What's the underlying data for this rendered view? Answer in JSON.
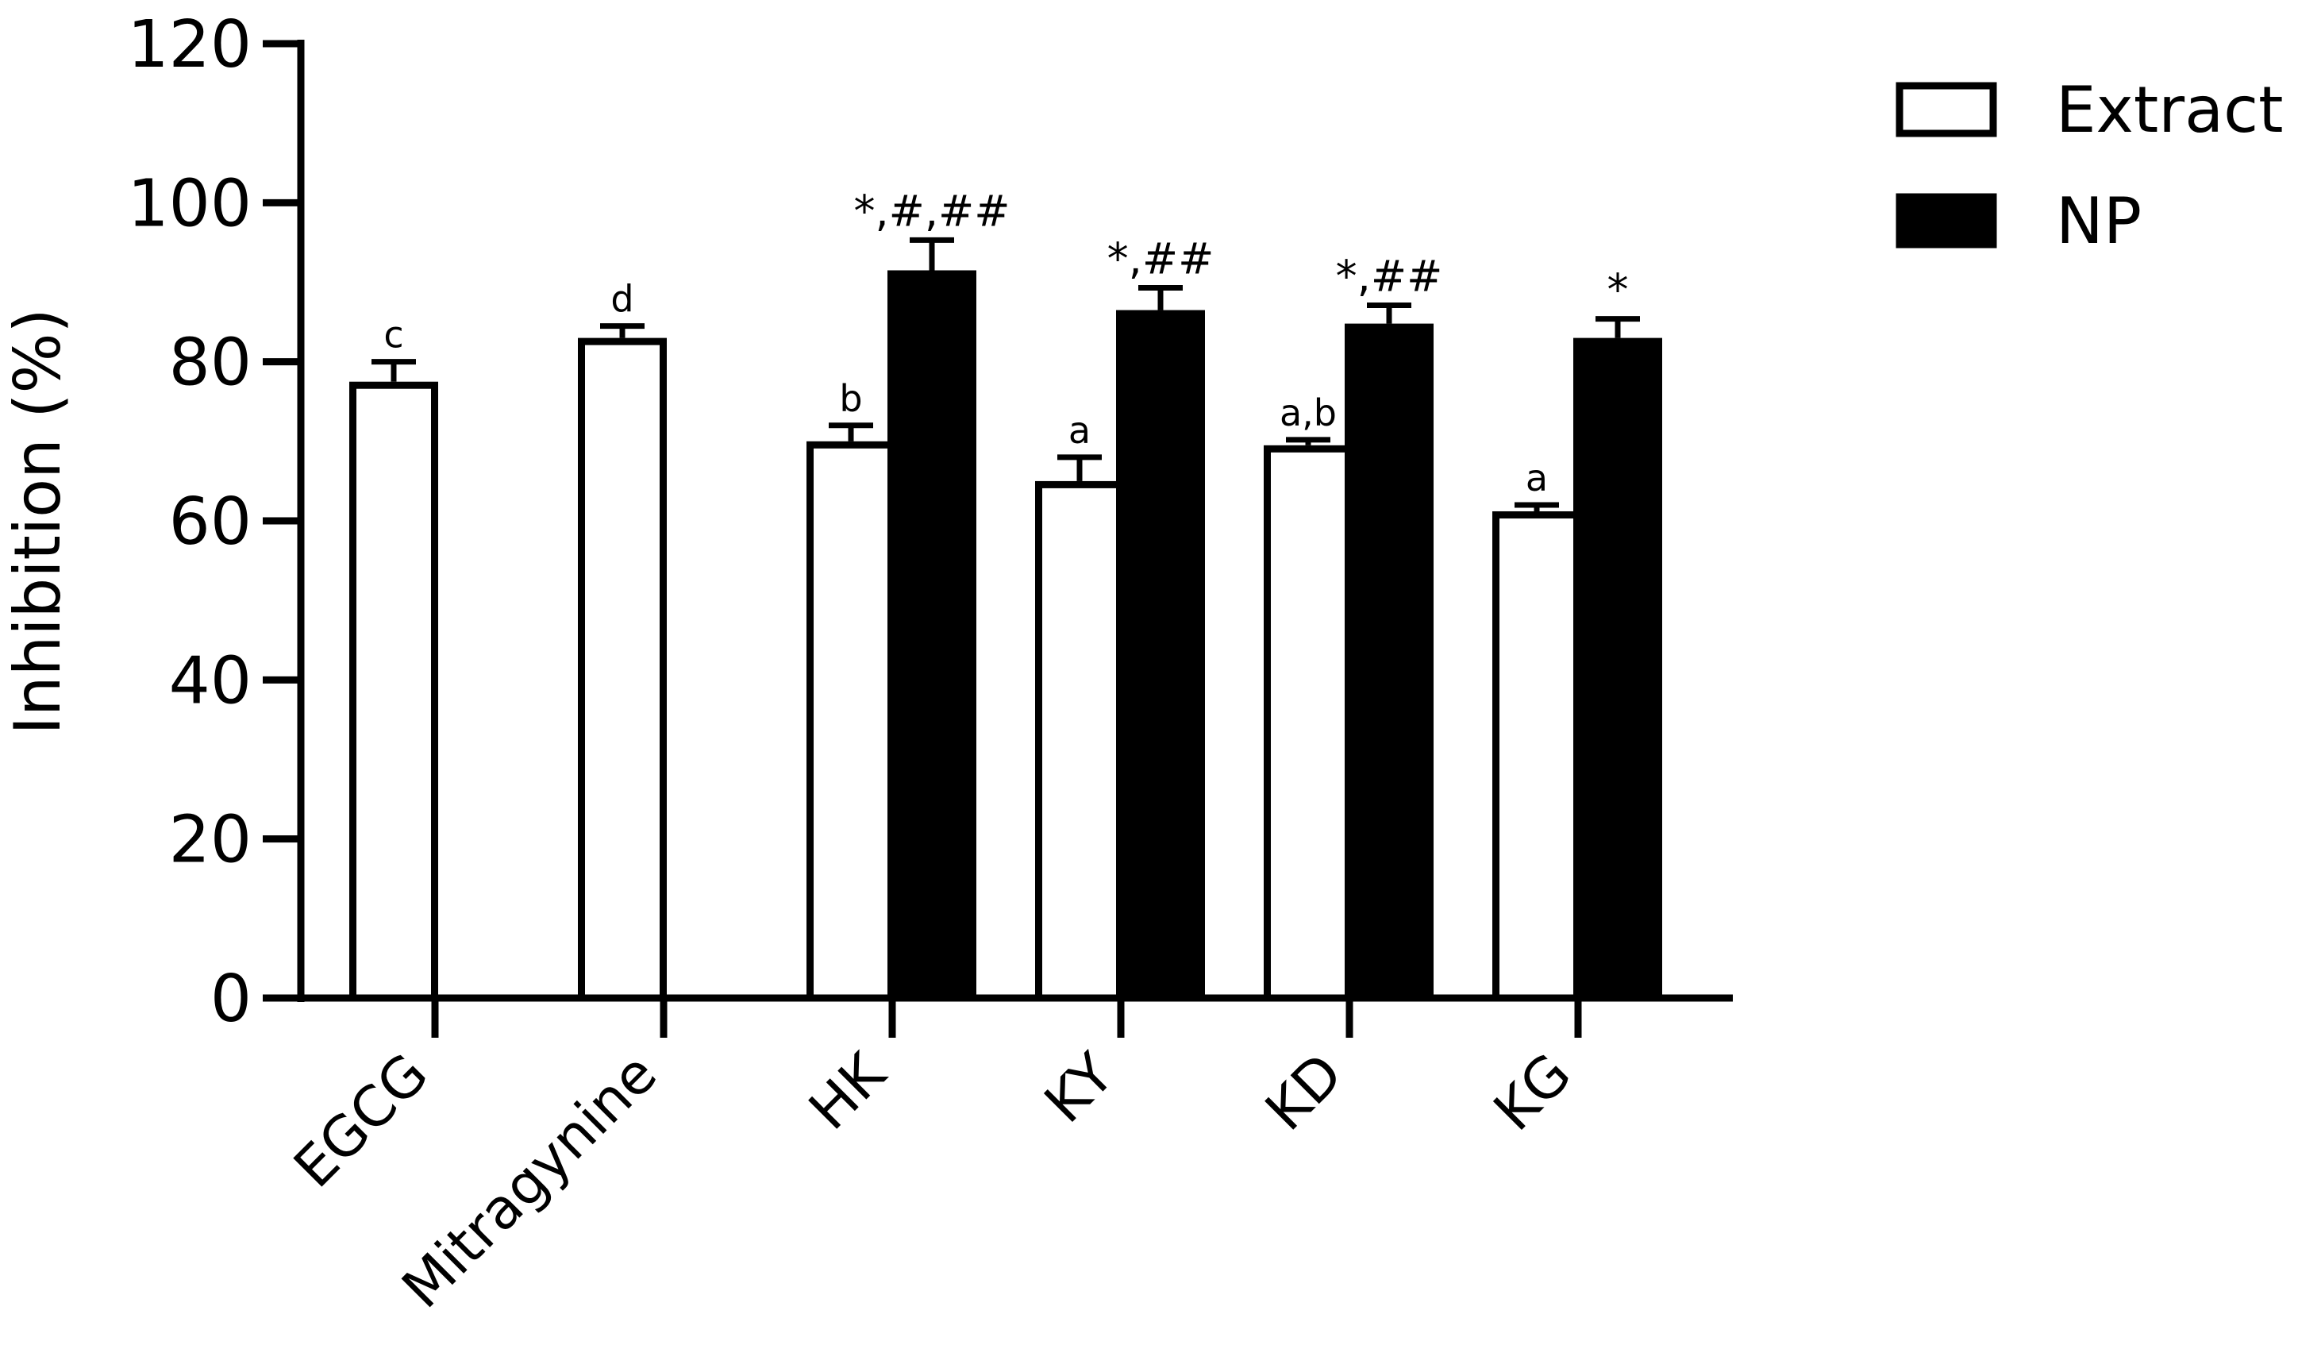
{
  "chart_data": {
    "type": "bar",
    "title": "",
    "xlabel": "",
    "ylabel": "Inhibition (%)",
    "ylim": [
      0,
      120
    ],
    "yticks": [
      0,
      20,
      40,
      60,
      80,
      100,
      120
    ],
    "grid": false,
    "legend_position": "top-right",
    "categories": [
      "EGCG",
      "Mitragynine",
      "HK",
      "KY",
      "KD",
      "KG"
    ],
    "series": [
      {
        "name": "Extract",
        "fill": "#ffffff",
        "stroke": "#000000",
        "values": [
          77.5,
          83,
          70,
          65,
          69.5,
          61.2
        ],
        "errors": [
          2.5,
          1.5,
          2,
          3,
          0.7,
          0.8
        ],
        "annotations": [
          "c",
          "d",
          "b",
          "a",
          "a,b",
          "a"
        ]
      },
      {
        "name": "NP",
        "fill": "#000000",
        "stroke": "#000000",
        "values": [
          null,
          null,
          91.5,
          86.5,
          84.8,
          83
        ],
        "errors": [
          null,
          null,
          3.8,
          2.8,
          2.3,
          2.4
        ],
        "annotations": [
          "",
          "",
          "*,#,##",
          "*,##",
          "*,##",
          "*"
        ]
      }
    ]
  }
}
